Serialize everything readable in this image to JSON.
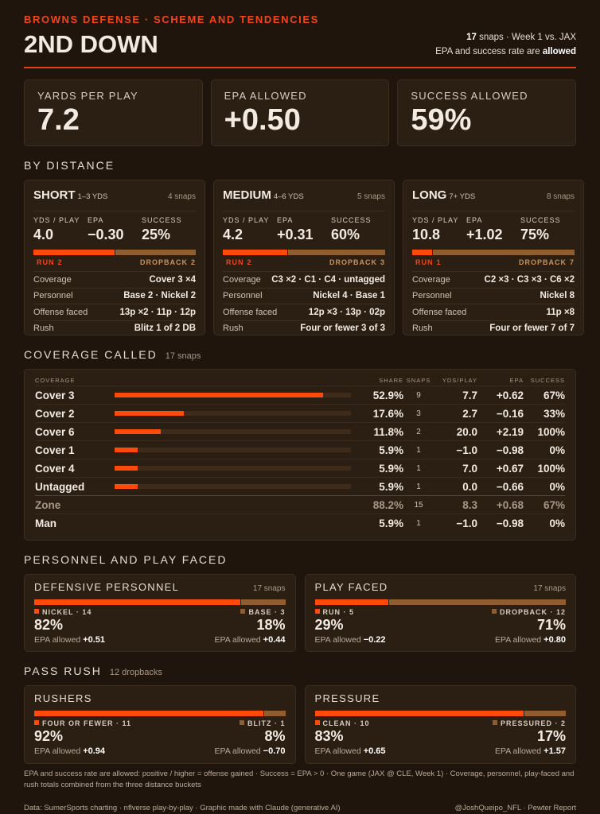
{
  "header": {
    "kicker": "BROWNS DEFENSE · SCHEME AND TENDENCIES",
    "title": "2ND DOWN",
    "snaps": "17",
    "snaps_text": "snaps · Week 1 vs. JAX",
    "note": "EPA and success rate are",
    "note_bold": "allowed"
  },
  "summary": [
    {
      "label": "YARDS PER PLAY",
      "value": "7.2"
    },
    {
      "label": "EPA ALLOWED",
      "value": "+0.50"
    },
    {
      "label": "SUCCESS ALLOWED",
      "value": "59%"
    }
  ],
  "by_distance": {
    "title": "BY DISTANCE",
    "buckets": [
      {
        "name": "SHORT",
        "range": "1–3 YDS",
        "snaps": "4 snaps",
        "stats": [
          {
            "label": "YDS / PLAY",
            "value": "4.0"
          },
          {
            "label": "EPA",
            "value": "−0.30"
          },
          {
            "label": "SUCCESS",
            "value": "25%"
          }
        ],
        "run": {
          "label": "RUN",
          "count": 2
        },
        "dropback": {
          "label": "DROPBACK",
          "count": 2
        },
        "rows": [
          {
            "label": "Coverage",
            "value": "Cover 3 ×4"
          },
          {
            "label": "Personnel",
            "value": "Base 2 · Nickel 2"
          },
          {
            "label": "Offense faced",
            "value": "13p ×2 · 11p · 12p"
          },
          {
            "label": "Rush",
            "value": "Blitz 1 of 2 DB"
          }
        ]
      },
      {
        "name": "MEDIUM",
        "range": "4–6 YDS",
        "snaps": "5 snaps",
        "stats": [
          {
            "label": "YDS / PLAY",
            "value": "4.2"
          },
          {
            "label": "EPA",
            "value": "+0.31"
          },
          {
            "label": "SUCCESS",
            "value": "60%"
          }
        ],
        "run": {
          "label": "RUN",
          "count": 2
        },
        "dropback": {
          "label": "DROPBACK",
          "count": 3
        },
        "rows": [
          {
            "label": "Coverage",
            "value": "C3 ×2 · C1 · C4 · untagged"
          },
          {
            "label": "Personnel",
            "value": "Nickel 4 · Base 1"
          },
          {
            "label": "Offense faced",
            "value": "12p ×3 · 13p · 02p"
          },
          {
            "label": "Rush",
            "value": "Four or fewer 3 of 3"
          }
        ]
      },
      {
        "name": "LONG",
        "range": "7+ YDS",
        "snaps": "8 snaps",
        "stats": [
          {
            "label": "YDS / PLAY",
            "value": "10.8"
          },
          {
            "label": "EPA",
            "value": "+1.02"
          },
          {
            "label": "SUCCESS",
            "value": "75%"
          }
        ],
        "run": {
          "label": "RUN",
          "count": 1
        },
        "dropback": {
          "label": "DROPBACK",
          "count": 7
        },
        "rows": [
          {
            "label": "Coverage",
            "value": "C2 ×3 · C3 ×3 · C6 ×2"
          },
          {
            "label": "Personnel",
            "value": "Nickel 8"
          },
          {
            "label": "Offense faced",
            "value": "11p ×8"
          },
          {
            "label": "Rush",
            "value": "Four or fewer 7 of 7"
          }
        ]
      }
    ]
  },
  "coverage": {
    "title": "COVERAGE CALLED",
    "subtitle": "17 snaps",
    "columns": [
      "COVERAGE",
      "SHARE",
      "SNAPS",
      "YDS/PLAY",
      "EPA",
      "SUCCESS"
    ],
    "xlim": [
      0,
      60
    ],
    "rows": [
      {
        "name": "Cover 3",
        "share": 52.9,
        "share_label": "52.9%",
        "snaps": 9,
        "ypp": "7.7",
        "epa": "+0.62",
        "success": "67%"
      },
      {
        "name": "Cover 2",
        "share": 17.6,
        "share_label": "17.6%",
        "snaps": 3,
        "ypp": "2.7",
        "epa": "−0.16",
        "success": "33%"
      },
      {
        "name": "Cover 6",
        "share": 11.8,
        "share_label": "11.8%",
        "snaps": 2,
        "ypp": "20.0",
        "epa": "+2.19",
        "success": "100%"
      },
      {
        "name": "Cover 1",
        "share": 5.9,
        "share_label": "5.9%",
        "snaps": 1,
        "ypp": "−1.0",
        "epa": "−0.98",
        "success": "0%"
      },
      {
        "name": "Cover 4",
        "share": 5.9,
        "share_label": "5.9%",
        "snaps": 1,
        "ypp": "7.0",
        "epa": "+0.67",
        "success": "100%"
      },
      {
        "name": "Untagged",
        "share": 5.9,
        "share_label": "5.9%",
        "snaps": 1,
        "ypp": "0.0",
        "epa": "−0.66",
        "success": "0%"
      }
    ],
    "summary_rows": [
      {
        "name": "Zone",
        "share_label": "88.2%",
        "snaps": 15,
        "ypp": "8.3",
        "epa": "+0.68",
        "success": "67%"
      },
      {
        "name": "Man",
        "share_label": "5.9%",
        "snaps": 1,
        "ypp": "−1.0",
        "epa": "−0.98",
        "success": "0%"
      }
    ]
  },
  "personnel": {
    "title": "PERSONNEL AND PLAY FACED",
    "cards": [
      {
        "title": "DEFENSIVE PERSONNEL",
        "snaps": "17 snaps",
        "left": {
          "label": "NICKEL",
          "count": 14,
          "pct": "82%",
          "epa_label": "EPA allowed",
          "epa": "+0.51"
        },
        "right": {
          "label": "BASE",
          "count": 3,
          "pct": "18%",
          "epa_label": "EPA allowed",
          "epa": "+0.44"
        }
      },
      {
        "title": "PLAY FACED",
        "snaps": "17 snaps",
        "left": {
          "label": "RUN",
          "count": 5,
          "pct": "29%",
          "epa_label": "EPA allowed",
          "epa": "−0.22"
        },
        "right": {
          "label": "DROPBACK",
          "count": 12,
          "pct": "71%",
          "epa_label": "EPA allowed",
          "epa": "+0.80"
        }
      }
    ]
  },
  "pass_rush": {
    "title": "PASS RUSH",
    "subtitle": "12 dropbacks",
    "cards": [
      {
        "title": "RUSHERS",
        "left": {
          "label": "FOUR OR FEWER",
          "count": 11,
          "pct": "92%",
          "epa_label": "EPA allowed",
          "epa": "+0.94"
        },
        "right": {
          "label": "BLITZ",
          "count": 1,
          "pct": "8%",
          "epa_label": "EPA allowed",
          "epa": "−0.70"
        }
      },
      {
        "title": "PRESSURE",
        "left": {
          "label": "CLEAN",
          "count": 10,
          "pct": "83%",
          "epa_label": "EPA allowed",
          "epa": "+0.65"
        },
        "right": {
          "label": "PRESSURED",
          "count": 2,
          "pct": "17%",
          "epa_label": "EPA allowed",
          "epa": "+1.57"
        }
      }
    ]
  },
  "footer": {
    "note": "EPA and success rate are allowed: positive / higher = offense gained · Success = EPA > 0 · One game (JAX @ CLE, Week 1) · Coverage, personnel, play-faced and rush totals combined from the three distance buckets",
    "source": "Data: SumerSports charting · nflverse play-by-play · Graphic made with Claude (generative AI)",
    "credit": "@JoshQueipo_NFL · Pewter Report"
  }
}
